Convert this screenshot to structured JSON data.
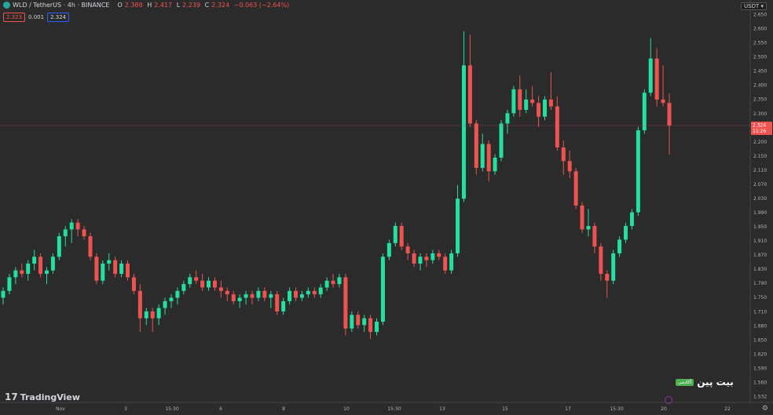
{
  "header": {
    "symbol": "WLD / TetherUS · 4h · BINANCE",
    "o_label": "O",
    "o": "2.388",
    "h_label": "H",
    "h": "2.417",
    "l_label": "L",
    "l": "2.239",
    "c_label": "C",
    "c": "2.324",
    "chg": "−0.063 (−2.64%)",
    "sell": "2.323",
    "spread": "0.001",
    "buy": "2.324"
  },
  "currency": "USDT ▾",
  "price_badge": {
    "price": "2.324",
    "countdown": "11:26"
  },
  "logo": {
    "text": "TradingView",
    "icon": "tv-logo-icon"
  },
  "brand": {
    "name": "بیت پین",
    "tag": "آکادمی"
  },
  "colors": {
    "up": "#26a69a",
    "up_bright": "#22e0a0",
    "down": "#ef5350",
    "bg": "#2b2b2b",
    "text": "#d1d4dc"
  },
  "chart_data": {
    "type": "candlestick",
    "y_ticks": [
      "2.650",
      "2.600",
      "2.550",
      "2.500",
      "2.450",
      "2.400",
      "2.350",
      "2.300",
      "2.250",
      "2.200",
      "2.150",
      "2.110",
      "2.070",
      "2.030",
      "1.990",
      "1.950",
      "1.910",
      "1.870",
      "1.830",
      "1.790",
      "1.750",
      "1.710",
      "1.680",
      "1.650",
      "1.620",
      "1.590",
      "1.560",
      "1.532"
    ],
    "x_ticks": [
      "Nov",
      "3",
      "15:30",
      "6",
      "8",
      "10",
      "15:30",
      "13",
      "15",
      "17",
      "15:30",
      "20",
      "22"
    ],
    "last_price": 2.324,
    "candles": [
      [
        1.82,
        1.85,
        1.8,
        1.84
      ],
      [
        1.84,
        1.89,
        1.83,
        1.88
      ],
      [
        1.88,
        1.91,
        1.86,
        1.9
      ],
      [
        1.9,
        1.92,
        1.88,
        1.89
      ],
      [
        1.89,
        1.93,
        1.87,
        1.92
      ],
      [
        1.92,
        1.96,
        1.9,
        1.94
      ],
      [
        1.94,
        1.95,
        1.88,
        1.89
      ],
      [
        1.89,
        1.91,
        1.86,
        1.9
      ],
      [
        1.9,
        1.95,
        1.89,
        1.94
      ],
      [
        1.94,
        2.01,
        1.93,
        2.0
      ],
      [
        2.0,
        2.03,
        1.97,
        2.02
      ],
      [
        2.02,
        2.05,
        1.98,
        2.04
      ],
      [
        2.04,
        2.05,
        2.0,
        2.02
      ],
      [
        2.02,
        2.03,
        1.99,
        2.0
      ],
      [
        2.0,
        2.01,
        1.93,
        1.94
      ],
      [
        1.94,
        1.95,
        1.86,
        1.87
      ],
      [
        1.87,
        1.93,
        1.86,
        1.92
      ],
      [
        1.92,
        1.95,
        1.9,
        1.93
      ],
      [
        1.93,
        1.94,
        1.88,
        1.89
      ],
      [
        1.89,
        1.93,
        1.88,
        1.92
      ],
      [
        1.92,
        1.93,
        1.87,
        1.88
      ],
      [
        1.88,
        1.89,
        1.83,
        1.84
      ],
      [
        1.84,
        1.86,
        1.72,
        1.76
      ],
      [
        1.76,
        1.79,
        1.74,
        1.78
      ],
      [
        1.78,
        1.79,
        1.72,
        1.76
      ],
      [
        1.76,
        1.8,
        1.74,
        1.79
      ],
      [
        1.79,
        1.82,
        1.77,
        1.81
      ],
      [
        1.81,
        1.83,
        1.79,
        1.82
      ],
      [
        1.82,
        1.85,
        1.8,
        1.84
      ],
      [
        1.84,
        1.87,
        1.83,
        1.86
      ],
      [
        1.86,
        1.89,
        1.85,
        1.88
      ],
      [
        1.88,
        1.9,
        1.86,
        1.87
      ],
      [
        1.87,
        1.89,
        1.84,
        1.85
      ],
      [
        1.85,
        1.88,
        1.84,
        1.87
      ],
      [
        1.87,
        1.88,
        1.84,
        1.85
      ],
      [
        1.85,
        1.87,
        1.82,
        1.84
      ],
      [
        1.84,
        1.85,
        1.81,
        1.83
      ],
      [
        1.83,
        1.84,
        1.8,
        1.81
      ],
      [
        1.81,
        1.83,
        1.79,
        1.82
      ],
      [
        1.82,
        1.84,
        1.8,
        1.83
      ],
      [
        1.83,
        1.84,
        1.8,
        1.82
      ],
      [
        1.82,
        1.85,
        1.81,
        1.84
      ],
      [
        1.84,
        1.85,
        1.81,
        1.82
      ],
      [
        1.82,
        1.84,
        1.79,
        1.83
      ],
      [
        1.83,
        1.84,
        1.77,
        1.78
      ],
      [
        1.78,
        1.82,
        1.77,
        1.81
      ],
      [
        1.81,
        1.85,
        1.8,
        1.84
      ],
      [
        1.84,
        1.85,
        1.81,
        1.82
      ],
      [
        1.82,
        1.84,
        1.81,
        1.83
      ],
      [
        1.83,
        1.85,
        1.82,
        1.84
      ],
      [
        1.84,
        1.85,
        1.82,
        1.83
      ],
      [
        1.83,
        1.86,
        1.82,
        1.85
      ],
      [
        1.85,
        1.88,
        1.84,
        1.87
      ],
      [
        1.87,
        1.89,
        1.85,
        1.86
      ],
      [
        1.86,
        1.89,
        1.85,
        1.88
      ],
      [
        1.88,
        1.89,
        1.71,
        1.73
      ],
      [
        1.73,
        1.78,
        1.72,
        1.77
      ],
      [
        1.77,
        1.78,
        1.73,
        1.74
      ],
      [
        1.74,
        1.77,
        1.72,
        1.76
      ],
      [
        1.76,
        1.77,
        1.7,
        1.72
      ],
      [
        1.72,
        1.76,
        1.71,
        1.75
      ],
      [
        1.75,
        1.95,
        1.74,
        1.94
      ],
      [
        1.94,
        1.99,
        1.93,
        1.98
      ],
      [
        1.98,
        2.04,
        1.97,
        2.03
      ],
      [
        2.03,
        2.04,
        1.96,
        1.97
      ],
      [
        1.97,
        1.98,
        1.93,
        1.95
      ],
      [
        1.95,
        1.96,
        1.91,
        1.92
      ],
      [
        1.92,
        1.95,
        1.9,
        1.94
      ],
      [
        1.94,
        1.95,
        1.91,
        1.93
      ],
      [
        1.93,
        1.96,
        1.92,
        1.95
      ],
      [
        1.95,
        1.96,
        1.93,
        1.94
      ],
      [
        1.94,
        1.95,
        1.89,
        1.9
      ],
      [
        1.9,
        1.96,
        1.89,
        1.95
      ],
      [
        1.95,
        2.15,
        1.94,
        2.11
      ],
      [
        2.11,
        2.6,
        2.1,
        2.5
      ],
      [
        2.5,
        2.59,
        2.32,
        2.33
      ],
      [
        2.33,
        2.34,
        2.18,
        2.2
      ],
      [
        2.2,
        2.3,
        2.19,
        2.27
      ],
      [
        2.27,
        2.28,
        2.16,
        2.19
      ],
      [
        2.19,
        2.24,
        2.18,
        2.23
      ],
      [
        2.23,
        2.34,
        2.22,
        2.33
      ],
      [
        2.33,
        2.37,
        2.3,
        2.36
      ],
      [
        2.36,
        2.44,
        2.35,
        2.43
      ],
      [
        2.43,
        2.47,
        2.35,
        2.37
      ],
      [
        2.37,
        2.43,
        2.36,
        2.4
      ],
      [
        2.4,
        2.44,
        2.38,
        2.39
      ],
      [
        2.39,
        2.41,
        2.32,
        2.35
      ],
      [
        2.35,
        2.41,
        2.34,
        2.4
      ],
      [
        2.4,
        2.48,
        2.37,
        2.38
      ],
      [
        2.38,
        2.41,
        2.25,
        2.26
      ],
      [
        2.26,
        2.28,
        2.18,
        2.22
      ],
      [
        2.22,
        2.25,
        2.17,
        2.19
      ],
      [
        2.19,
        2.2,
        2.08,
        2.09
      ],
      [
        2.09,
        2.1,
        2.01,
        2.02
      ],
      [
        2.02,
        2.08,
        2.0,
        2.03
      ],
      [
        2.03,
        2.04,
        1.95,
        1.97
      ],
      [
        1.97,
        1.98,
        1.87,
        1.89
      ],
      [
        1.89,
        1.9,
        1.82,
        1.87
      ],
      [
        1.87,
        1.96,
        1.86,
        1.95
      ],
      [
        1.95,
        2.0,
        1.94,
        1.99
      ],
      [
        1.99,
        2.04,
        1.98,
        2.03
      ],
      [
        2.03,
        2.08,
        2.02,
        2.07
      ],
      [
        2.07,
        2.32,
        2.06,
        2.31
      ],
      [
        2.31,
        2.43,
        2.3,
        2.42
      ],
      [
        2.42,
        2.58,
        2.41,
        2.52
      ],
      [
        2.52,
        2.55,
        2.38,
        2.4
      ],
      [
        2.4,
        2.5,
        2.38,
        2.39
      ],
      [
        2.39,
        2.417,
        2.239,
        2.324
      ]
    ]
  }
}
